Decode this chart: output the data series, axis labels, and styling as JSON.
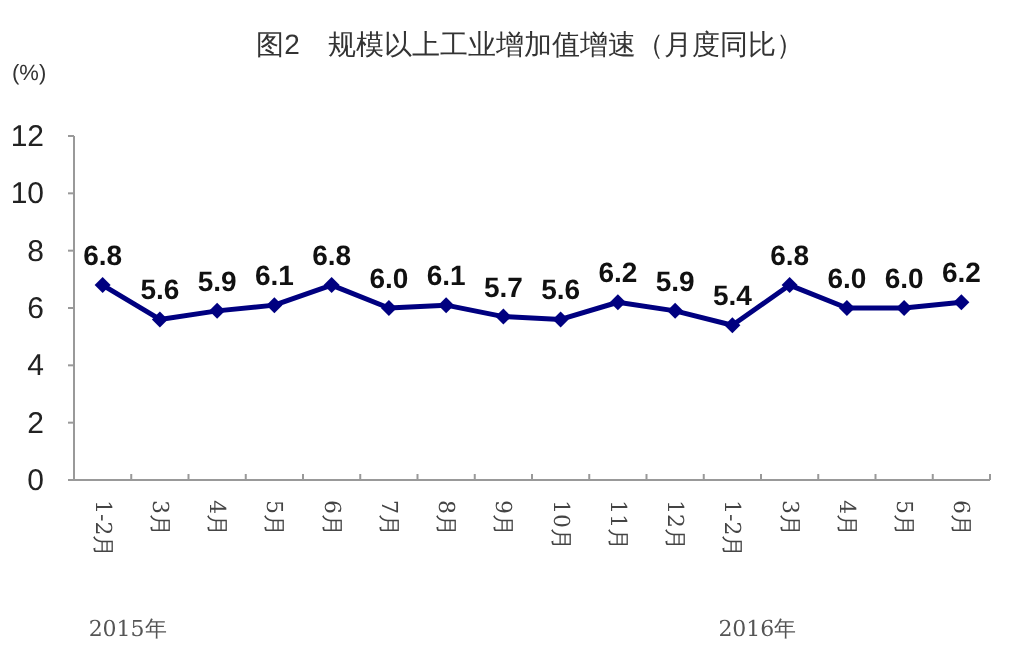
{
  "chart_data": {
    "type": "line",
    "title": "图2　规模以上工业增加值增速（月度同比）",
    "ylabel": "(%)",
    "categories": [
      "1-2月",
      "3月",
      "4月",
      "5月",
      "6月",
      "7月",
      "8月",
      "9月",
      "10月",
      "11月",
      "12月",
      "1-2月",
      "3月",
      "4月",
      "5月",
      "6月"
    ],
    "series": [
      {
        "color": "#000080",
        "values": [
          6.8,
          5.6,
          5.9,
          6.1,
          6.8,
          6.0,
          6.1,
          5.7,
          5.6,
          6.2,
          5.9,
          5.4,
          6.8,
          6.0,
          6.0,
          6.2
        ],
        "value_labels": [
          "6.8",
          "5.6",
          "5.9",
          "6.1",
          "6.8",
          "6.0",
          "6.1",
          "5.7",
          "5.6",
          "6.2",
          "5.9",
          "5.4",
          "6.8",
          "6.0",
          "6.0",
          "6.2"
        ]
      }
    ],
    "ylim": [
      0,
      12
    ],
    "yticks": [
      0,
      2,
      4,
      6,
      8,
      10,
      12
    ],
    "marker": "diamond",
    "line_style": "solid",
    "grid": false,
    "annotations": [
      "2015年",
      "2016年"
    ]
  }
}
